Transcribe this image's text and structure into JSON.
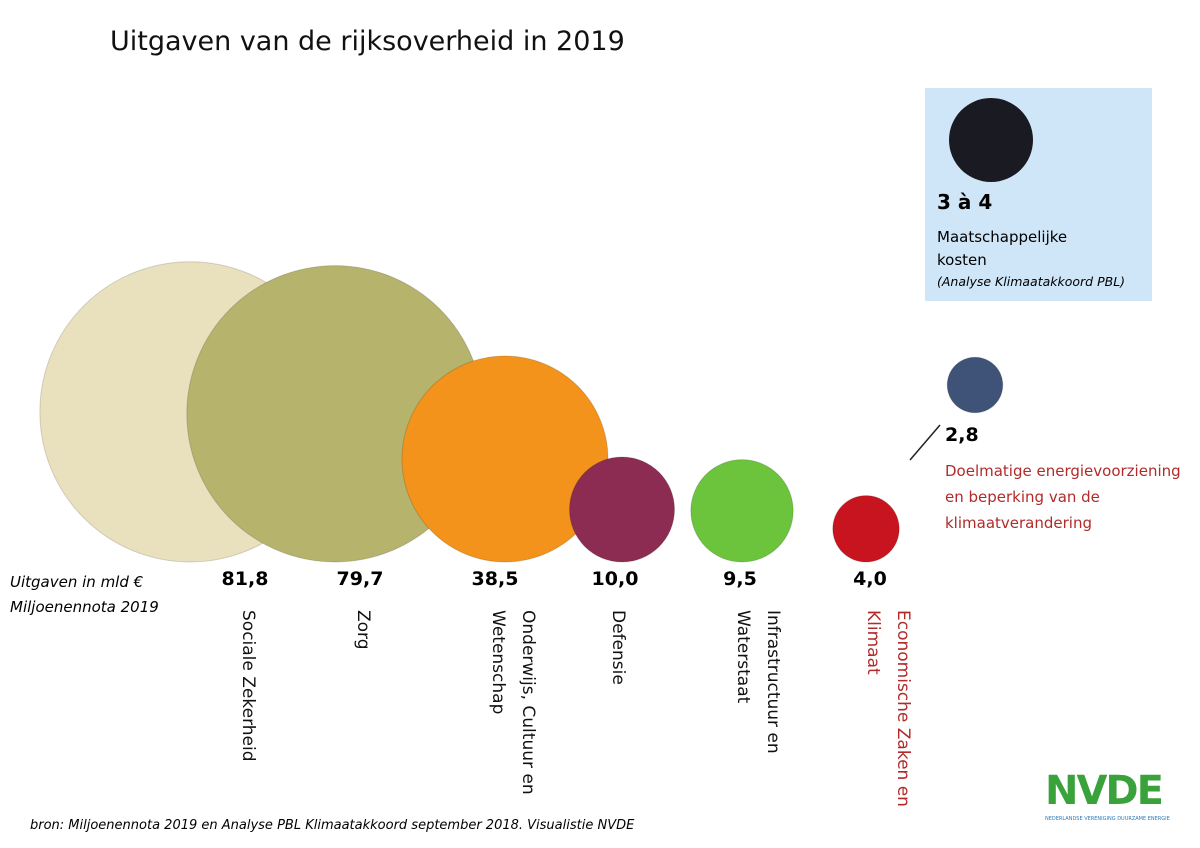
{
  "chart_data": {
    "type": "bubble",
    "title": "Uitgaven van de rijksoverheid in 2019",
    "axis_label": [
      "Uitgaven in mld €",
      "Miljoenennota 2019"
    ],
    "categories": [
      "Sociale Zekerheid",
      "Zorg",
      "Onderwijs, Cultuur en Wetenschap",
      "Defensie",
      "Infrastructuur en Waterstaat",
      "Economische Zaken en Klimaat"
    ],
    "values": [
      81.8,
      79.7,
      38.5,
      10.0,
      9.5,
      4.0
    ],
    "value_labels": [
      "81,8",
      "79,7",
      "38,5",
      "10,0",
      "9,5",
      "4,0"
    ],
    "colors": [
      "#e9e0bd",
      "#b5b36c",
      "#f4931c",
      "#8c2c52",
      "#6cc43c",
      "#c8141e"
    ],
    "category_label_colors": [
      "#111111",
      "#111111",
      "#111111",
      "#111111",
      "#111111",
      "#b22a2a"
    ],
    "extra": {
      "value": 2.8,
      "value_label": "2,8",
      "color": "#3f5278",
      "label": "Doelmatige energievoorziening en beperking van de klimaatverandering",
      "label_color": "#b22a2a"
    },
    "box": {
      "value_label": "3 à 4",
      "text": "Maatschappelijke kosten",
      "note": "(Analyse Klimaatakkoord PBL)",
      "color": "#cfe6f8",
      "berry_color": "#1a1a22"
    },
    "source": "bron: Miljoenennota 2019 en Analyse PBL Klimaatakkoord september 2018. Visualistie NVDE",
    "logo": "NVDE",
    "logo_subtitle": "NEDERLANDSE VERENIGING DUURZAME ENERGIE"
  }
}
